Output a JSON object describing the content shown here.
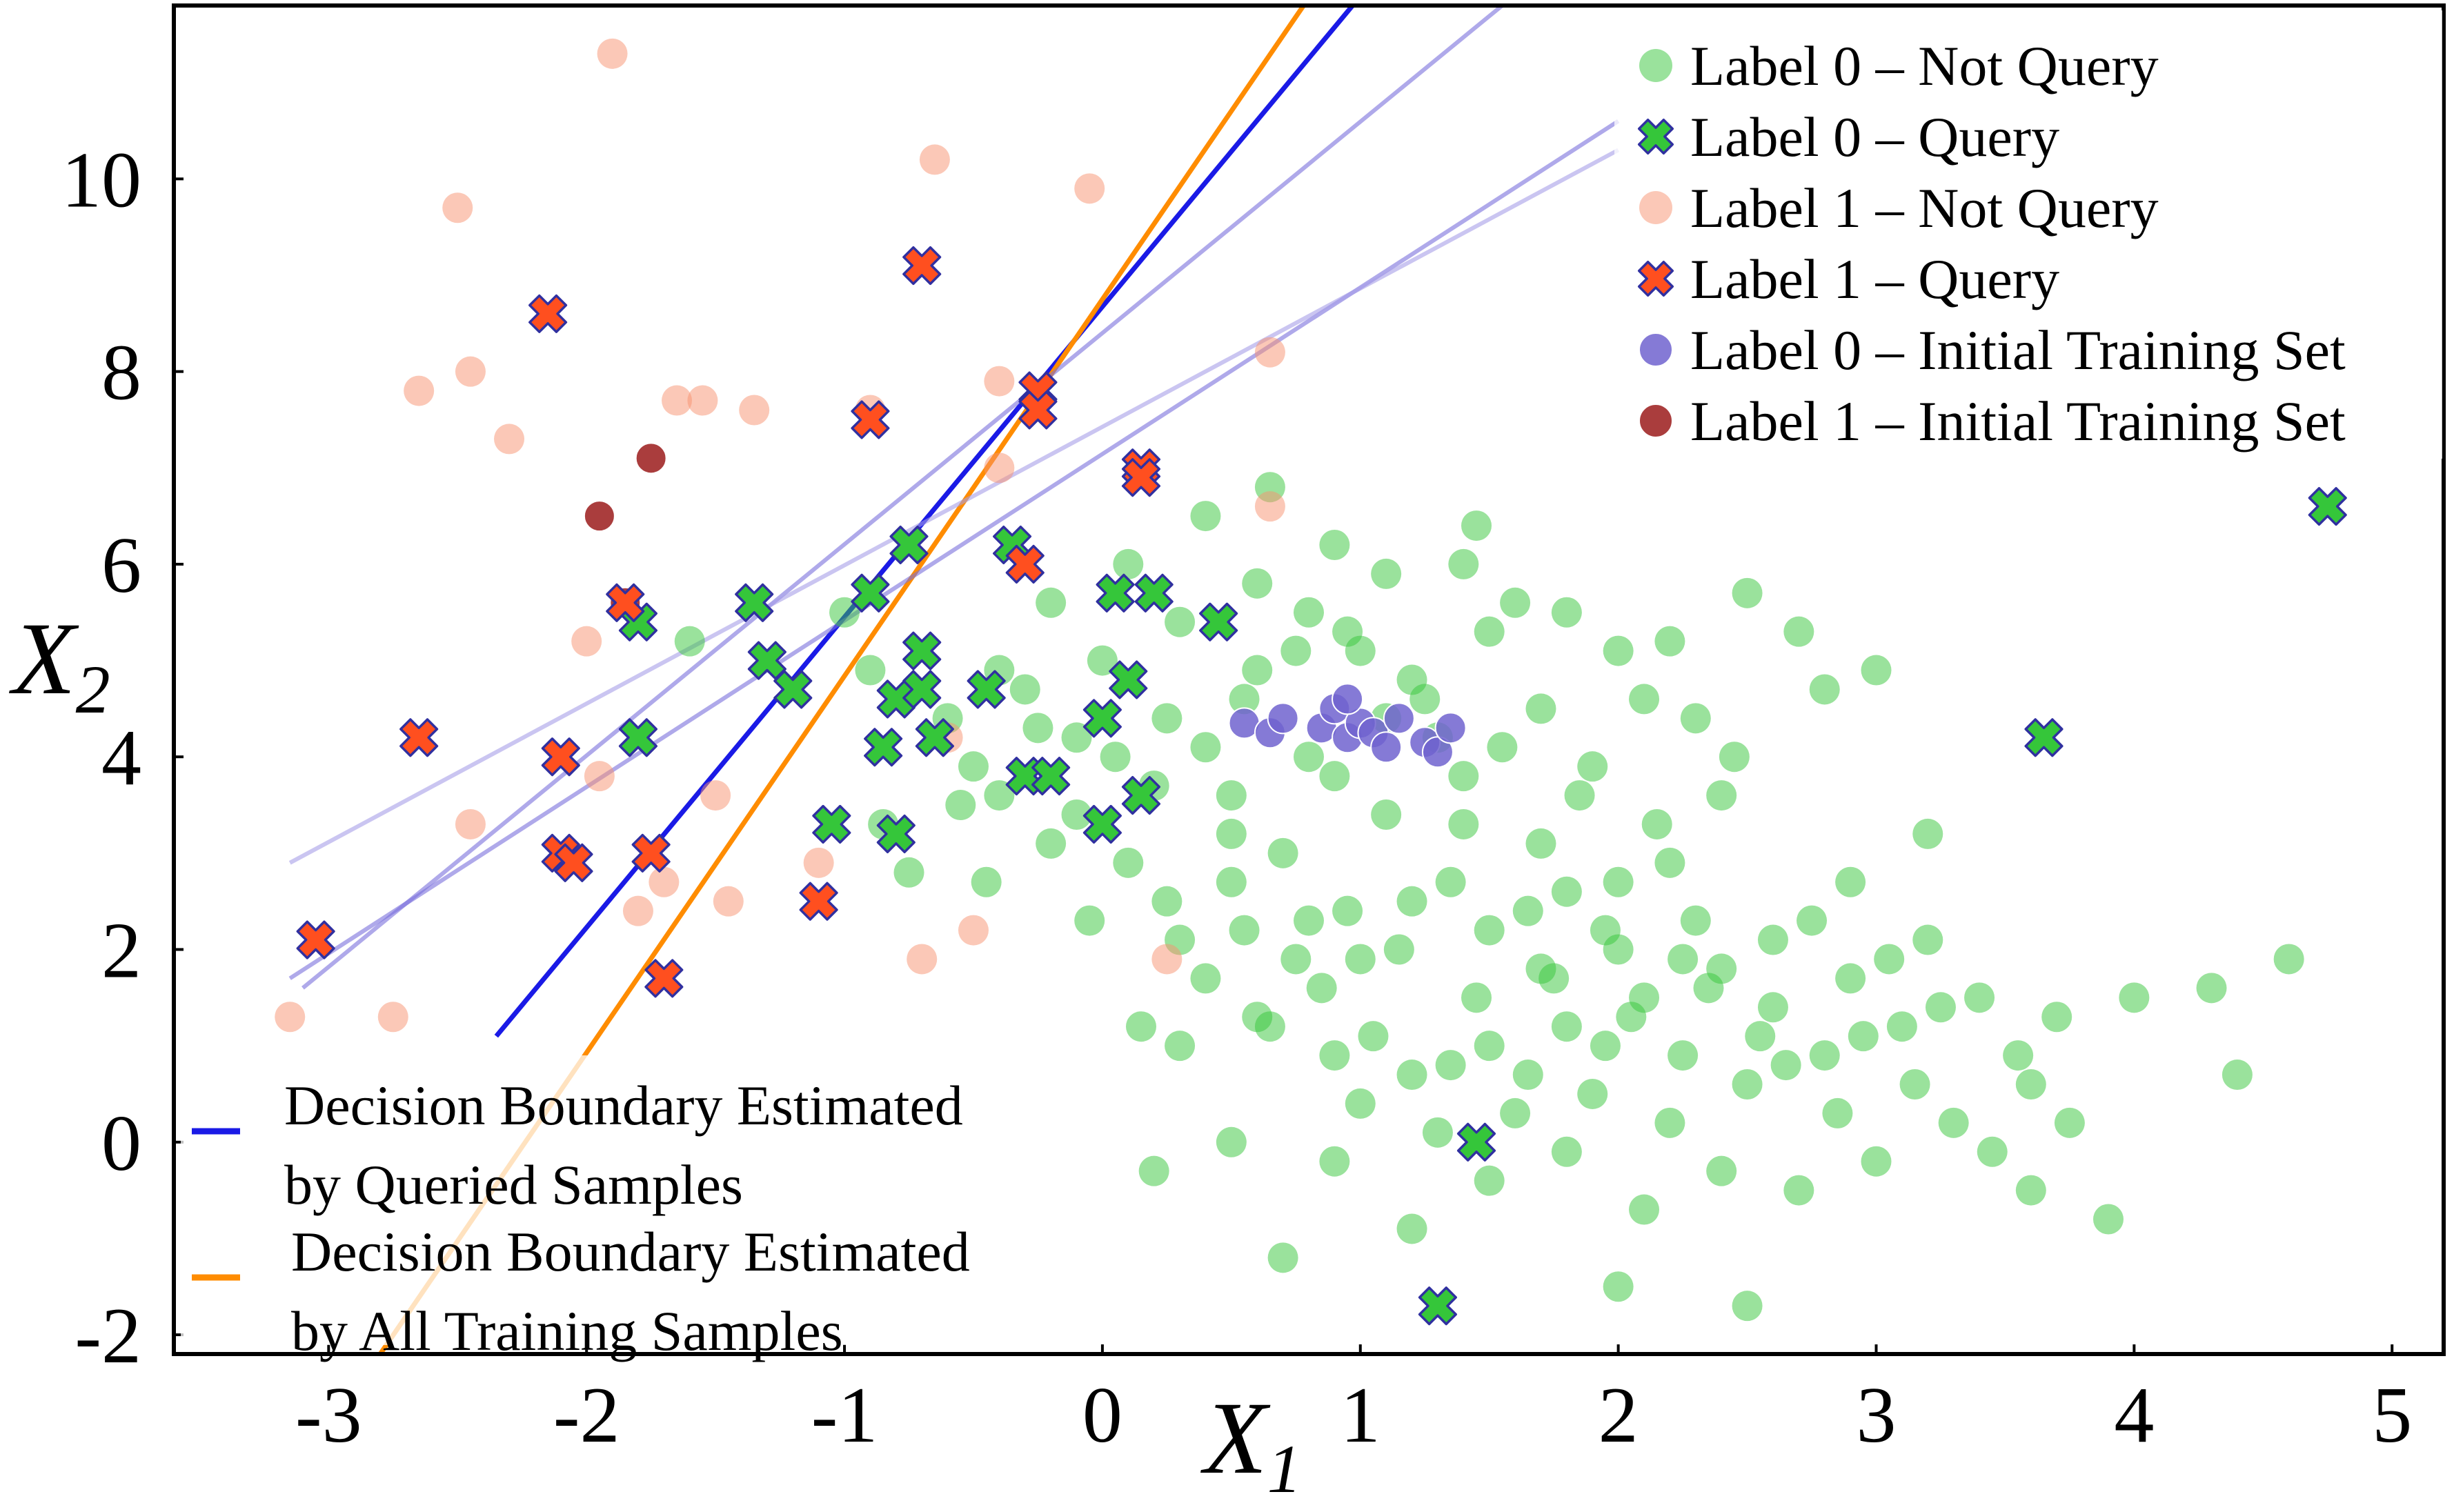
{
  "chart_data": {
    "type": "scatter",
    "title": "",
    "xlabel": "X",
    "xlabel_sub": "1",
    "ylabel": "X",
    "ylabel_sub": "2",
    "xlim": [
      -3.6,
      5.2
    ],
    "ylim": [
      -2.2,
      11.8
    ],
    "xticks": [
      -3,
      -2,
      -1,
      0,
      1,
      2,
      3,
      4,
      5
    ],
    "yticks": [
      -2,
      0,
      2,
      4,
      6,
      8,
      10
    ],
    "grid": false,
    "legend_position": "top-right",
    "colors": {
      "green": "#35c63a",
      "salmon": "#f7926f",
      "orange_red": "#ff4f1f",
      "purple": "#7063cf",
      "dark_red": "#9b1b1b",
      "blue_line": "#1a1ae6",
      "orange_line": "#ff8c00",
      "lavender_line": "#7a6fdc",
      "marker_edge": "#3030a0"
    },
    "series": [
      {
        "name": "Label 0 – Not Query",
        "marker": "circle",
        "color": "#35c63a",
        "points": [
          [
            1.0,
            5.1
          ],
          [
            1.2,
            4.8
          ],
          [
            0.8,
            5.5
          ],
          [
            1.5,
            5.3
          ],
          [
            0.6,
            4.9
          ],
          [
            1.3,
            4.2
          ],
          [
            0.9,
            3.8
          ],
          [
            1.7,
            4.5
          ],
          [
            1.1,
            3.4
          ],
          [
            0.4,
            4.1
          ],
          [
            0.2,
            3.7
          ],
          [
            -0.1,
            4.2
          ],
          [
            0.5,
            3.2
          ],
          [
            0.7,
            3.0
          ],
          [
            1.4,
            3.3
          ],
          [
            1.9,
            3.9
          ],
          [
            2.1,
            4.6
          ],
          [
            1.6,
            5.6
          ],
          [
            2.0,
            5.1
          ],
          [
            2.3,
            4.4
          ],
          [
            2.5,
            5.7
          ],
          [
            2.7,
            5.3
          ],
          [
            2.8,
            4.7
          ],
          [
            2.4,
            3.6
          ],
          [
            2.2,
            2.9
          ],
          [
            1.8,
            2.6
          ],
          [
            1.5,
            2.2
          ],
          [
            1.2,
            2.5
          ],
          [
            1.0,
            1.9
          ],
          [
            0.8,
            2.3
          ],
          [
            0.5,
            2.7
          ],
          [
            0.3,
            2.1
          ],
          [
            0.1,
            2.9
          ],
          [
            -0.2,
            3.1
          ],
          [
            -0.4,
            3.6
          ],
          [
            -0.6,
            4.4
          ],
          [
            -0.3,
            4.7
          ],
          [
            0.0,
            5.0
          ],
          [
            0.3,
            5.4
          ],
          [
            0.6,
            5.8
          ],
          [
            0.9,
            6.2
          ],
          [
            1.1,
            5.9
          ],
          [
            1.4,
            6.0
          ],
          [
            1.8,
            5.5
          ],
          [
            2.2,
            5.2
          ],
          [
            3.0,
            4.9
          ],
          [
            3.2,
            3.2
          ],
          [
            2.9,
            2.7
          ],
          [
            2.6,
            2.1
          ],
          [
            2.4,
            1.8
          ],
          [
            2.1,
            1.5
          ],
          [
            1.8,
            1.2
          ],
          [
            1.5,
            1.0
          ],
          [
            1.2,
            0.7
          ],
          [
            0.9,
            0.9
          ],
          [
            0.6,
            1.3
          ],
          [
            0.3,
            1.0
          ],
          [
            1.0,
            0.4
          ],
          [
            1.3,
            0.1
          ],
          [
            1.6,
            0.3
          ],
          [
            1.9,
            0.5
          ],
          [
            2.2,
            0.2
          ],
          [
            2.5,
            0.6
          ],
          [
            2.8,
            0.9
          ],
          [
            3.1,
            1.2
          ],
          [
            3.4,
            1.5
          ],
          [
            3.7,
            1.3
          ],
          [
            4.0,
            1.5
          ],
          [
            4.3,
            1.6
          ],
          [
            4.6,
            1.9
          ],
          [
            3.6,
            0.6
          ],
          [
            3.3,
            0.2
          ],
          [
            3.0,
            -0.2
          ],
          [
            2.7,
            -0.5
          ],
          [
            2.4,
            -0.3
          ],
          [
            2.1,
            -0.7
          ],
          [
            1.8,
            -0.1
          ],
          [
            1.5,
            -0.4
          ],
          [
            1.2,
            -0.9
          ],
          [
            0.7,
            -1.2
          ],
          [
            2.0,
            -1.5
          ],
          [
            2.5,
            -1.7
          ],
          [
            3.9,
            -0.8
          ],
          [
            3.6,
            -0.5
          ],
          [
            4.4,
            0.7
          ],
          [
            0.2,
            -0.3
          ],
          [
            0.5,
            0.0
          ],
          [
            0.9,
            -0.2
          ],
          [
            1.7,
            1.8
          ],
          [
            2.0,
            2.0
          ],
          [
            2.3,
            2.3
          ],
          [
            2.6,
            1.4
          ],
          [
            2.9,
            1.7
          ],
          [
            3.2,
            2.1
          ],
          [
            2.0,
            2.7
          ],
          [
            1.7,
            3.1
          ],
          [
            1.4,
            3.8
          ],
          [
            1.1,
            4.4
          ],
          [
            0.8,
            4.0
          ],
          [
            0.5,
            3.6
          ],
          [
            -0.1,
            3.4
          ],
          [
            -0.5,
            3.9
          ],
          [
            -0.4,
            4.9
          ],
          [
            -0.2,
            5.6
          ],
          [
            0.1,
            6.0
          ],
          [
            0.4,
            6.5
          ],
          [
            0.65,
            6.8
          ],
          [
            1.45,
            6.4
          ],
          [
            2.45,
            4.0
          ],
          [
            2.15,
            3.3
          ],
          [
            1.85,
            3.6
          ],
          [
            1.55,
            4.1
          ],
          [
            1.25,
            4.6
          ],
          [
            0.95,
            5.3
          ],
          [
            0.75,
            5.1
          ],
          [
            0.55,
            4.6
          ],
          [
            0.25,
            4.4
          ],
          [
            0.05,
            4.0
          ],
          [
            -0.25,
            4.3
          ],
          [
            -0.55,
            3.5
          ],
          [
            -0.85,
            3.3
          ],
          [
            -0.9,
            4.9
          ],
          [
            -1.0,
            5.5
          ],
          [
            -1.6,
            5.2
          ],
          [
            -0.75,
            2.8
          ],
          [
            -0.45,
            2.7
          ],
          [
            0.15,
            1.2
          ],
          [
            0.4,
            1.7
          ],
          [
            0.65,
            1.2
          ],
          [
            0.85,
            1.6
          ],
          [
            1.05,
            1.1
          ],
          [
            1.35,
            0.8
          ],
          [
            1.65,
            0.7
          ],
          [
            1.95,
            1.0
          ],
          [
            2.25,
            0.9
          ],
          [
            2.55,
            1.1
          ],
          [
            2.85,
            0.3
          ],
          [
            3.15,
            0.6
          ],
          [
            3.45,
            -0.1
          ],
          [
            3.75,
            0.2
          ],
          [
            1.45,
            1.5
          ],
          [
            1.75,
            1.7
          ],
          [
            2.05,
            1.3
          ],
          [
            2.35,
            1.6
          ],
          [
            2.65,
            0.8
          ],
          [
            2.95,
            1.1
          ],
          [
            3.25,
            1.4
          ],
          [
            3.55,
            0.9
          ],
          [
            1.15,
            2.0
          ],
          [
            0.95,
            2.4
          ],
          [
            1.35,
            2.7
          ],
          [
            1.65,
            2.4
          ],
          [
            1.95,
            2.2
          ],
          [
            2.25,
            1.9
          ],
          [
            2.75,
            2.3
          ],
          [
            3.05,
            1.9
          ],
          [
            0.55,
            2.2
          ],
          [
            0.25,
            2.5
          ],
          [
            -0.05,
            2.3
          ],
          [
            0.75,
            1.9
          ]
        ]
      },
      {
        "name": "Label 0 – Query",
        "marker": "x",
        "color": "#35c63a",
        "points": [
          [
            -1.8,
            5.4
          ],
          [
            -1.8,
            4.2
          ],
          [
            -1.35,
            5.6
          ],
          [
            -1.3,
            5.0
          ],
          [
            -1.2,
            4.7
          ],
          [
            -0.9,
            5.7
          ],
          [
            -0.8,
            4.6
          ],
          [
            -0.85,
            4.1
          ],
          [
            -1.05,
            3.3
          ],
          [
            -0.8,
            3.2
          ],
          [
            -0.75,
            6.2
          ],
          [
            -0.7,
            5.1
          ],
          [
            -0.7,
            4.7
          ],
          [
            -0.65,
            4.2
          ],
          [
            -0.45,
            4.7
          ],
          [
            -0.35,
            6.2
          ],
          [
            -0.3,
            3.8
          ],
          [
            -0.2,
            3.8
          ],
          [
            0.0,
            4.4
          ],
          [
            0.05,
            5.7
          ],
          [
            0.1,
            4.8
          ],
          [
            0.2,
            5.7
          ],
          [
            0.15,
            3.6
          ],
          [
            0.0,
            3.3
          ],
          [
            0.45,
            5.4
          ],
          [
            1.45,
            0.0
          ],
          [
            1.3,
            -1.7
          ],
          [
            3.65,
            4.2
          ],
          [
            4.75,
            6.6
          ]
        ]
      },
      {
        "name": "Label 1 – Not Query",
        "marker": "circle",
        "color": "#f7926f",
        "points": [
          [
            -1.9,
            11.3
          ],
          [
            -0.65,
            10.2
          ],
          [
            -0.05,
            9.9
          ],
          [
            -2.5,
            9.7
          ],
          [
            -2.45,
            8.0
          ],
          [
            -2.65,
            7.8
          ],
          [
            -2.3,
            7.3
          ],
          [
            -1.65,
            7.7
          ],
          [
            -1.55,
            7.7
          ],
          [
            -1.35,
            7.6
          ],
          [
            -0.9,
            7.6
          ],
          [
            -0.4,
            7.9
          ],
          [
            -0.4,
            7.0
          ],
          [
            0.65,
            8.2
          ],
          [
            0.65,
            6.6
          ],
          [
            -2.0,
            5.2
          ],
          [
            -1.95,
            3.8
          ],
          [
            -2.45,
            3.3
          ],
          [
            -1.5,
            3.6
          ],
          [
            -1.1,
            2.9
          ],
          [
            -0.6,
            4.2
          ],
          [
            -1.8,
            2.4
          ],
          [
            -1.7,
            2.7
          ],
          [
            -1.45,
            2.5
          ],
          [
            -2.75,
            1.3
          ],
          [
            -3.15,
            1.3
          ],
          [
            -0.7,
            1.9
          ],
          [
            -0.5,
            2.2
          ],
          [
            0.25,
            1.9
          ]
        ]
      },
      {
        "name": "Label 1 – Query",
        "marker": "x",
        "color": "#ff4f1f",
        "points": [
          [
            -0.7,
            9.1
          ],
          [
            -2.15,
            8.6
          ],
          [
            -0.9,
            7.5
          ],
          [
            -0.25,
            7.8
          ],
          [
            -0.25,
            7.6
          ],
          [
            0.15,
            7.0
          ],
          [
            0.15,
            6.9
          ],
          [
            -0.3,
            6.0
          ],
          [
            -1.85,
            5.6
          ],
          [
            -2.65,
            4.2
          ],
          [
            -2.1,
            4.0
          ],
          [
            -2.1,
            3.0
          ],
          [
            -2.05,
            2.9
          ],
          [
            -1.75,
            3.0
          ],
          [
            -1.1,
            2.5
          ],
          [
            -1.7,
            1.7
          ],
          [
            -3.05,
            2.1
          ]
        ]
      },
      {
        "name": "Label 0 – Initial Training Set",
        "marker": "circle",
        "color": "#7063cf",
        "points": [
          [
            0.55,
            4.35
          ],
          [
            0.65,
            4.25
          ],
          [
            0.7,
            4.4
          ],
          [
            0.85,
            4.3
          ],
          [
            0.9,
            4.5
          ],
          [
            0.95,
            4.2
          ],
          [
            1.0,
            4.35
          ],
          [
            1.05,
            4.25
          ],
          [
            1.15,
            4.4
          ],
          [
            1.25,
            4.15
          ],
          [
            1.3,
            4.05
          ],
          [
            0.95,
            4.6
          ],
          [
            1.1,
            4.1
          ],
          [
            1.35,
            4.3
          ]
        ]
      },
      {
        "name": "Label 1 – Initial Training Set",
        "marker": "circle",
        "color": "#9b1b1b",
        "points": [
          [
            -1.75,
            7.1
          ],
          [
            -1.95,
            6.5
          ],
          [
            -1.85,
            5.6
          ]
        ]
      }
    ],
    "lines": [
      {
        "name": "Decision Boundary Estimated by Queried Samples",
        "color": "#1a1ae6",
        "p1": [
          -2.35,
          1.1
        ],
        "p2": [
          0.97,
          11.8
        ]
      },
      {
        "name": "Decision Boundary Estimated by All Training Samples",
        "color": "#ff8c00",
        "p1": [
          -2.8,
          -2.2
        ],
        "p2": [
          0.78,
          11.8
        ]
      },
      {
        "name": "boundary-candidate-1",
        "color": "#7a6fdc",
        "p1": [
          -3.1,
          1.6
        ],
        "p2": [
          1.55,
          11.8
        ]
      },
      {
        "name": "boundary-candidate-2",
        "color": "#7a6fdc",
        "p1": [
          -3.15,
          1.7
        ],
        "p2": [
          2.0,
          10.6
        ]
      },
      {
        "name": "boundary-candidate-3",
        "color": "#a79ee8",
        "p1": [
          -3.15,
          2.9
        ],
        "p2": [
          2.0,
          10.3
        ]
      }
    ],
    "legend_points": [
      {
        "label": "Label 0 – Not Query",
        "marker": "circle",
        "color": "#35c63a"
      },
      {
        "label": "Label 0 – Query",
        "marker": "x",
        "color": "#35c63a"
      },
      {
        "label": "Label 1 – Not Query",
        "marker": "circle",
        "color": "#f7926f"
      },
      {
        "label": "Label 1 – Query",
        "marker": "x",
        "color": "#ff4f1f"
      },
      {
        "label": "Label 0 – Initial Training Set",
        "marker": "circle",
        "color": "#7063cf"
      },
      {
        "label": "Label 1 – Initial Training Set",
        "marker": "circle",
        "color": "#9b1b1b"
      }
    ],
    "legend_lines": [
      {
        "line1": "Decision Boundary Estimated",
        "line2": "by Queried Samples",
        "color": "#1a1ae6"
      },
      {
        "line1": "Decision Boundary Estimated",
        "line2": "by All Training Samples",
        "color": "#ff8c00"
      }
    ]
  }
}
